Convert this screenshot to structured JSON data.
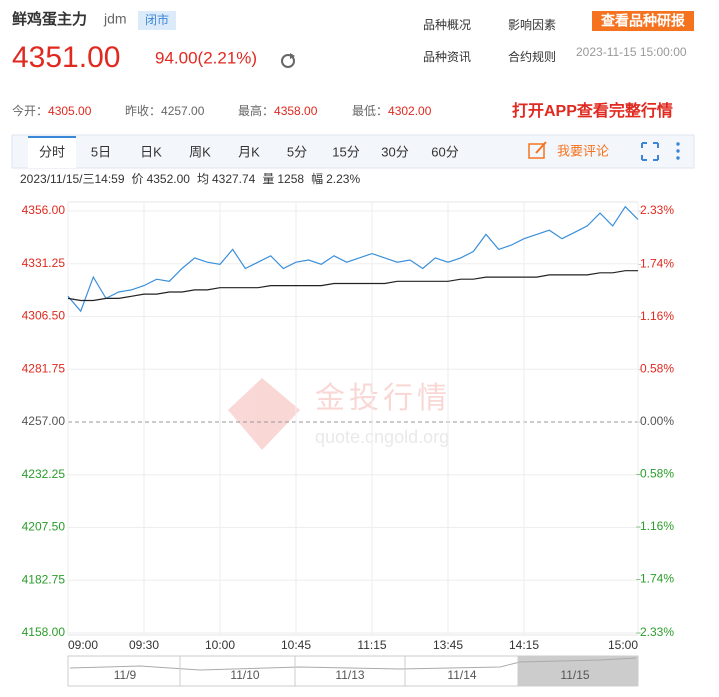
{
  "header": {
    "name": "鲜鸡蛋主力",
    "code": "jdm",
    "status": "闭市",
    "price": "4351.00",
    "change": "94.00(2.21%)",
    "links": [
      "品种概况",
      "影响因素",
      "品种资讯",
      "合约规则"
    ],
    "button": "查看品种研报",
    "datetime": "2023-11-15 15:00:00"
  },
  "stats": [
    {
      "label": "今开：",
      "value": "4305.00"
    },
    {
      "label": "昨收：",
      "value": "4257.00"
    },
    {
      "label": "最高：",
      "value": "4358.00"
    },
    {
      "label": "最低：",
      "value": "4302.00"
    }
  ],
  "promo": "打开APP查看完整行情",
  "tabs": [
    "分时",
    "5日",
    "日K",
    "周K",
    "月K",
    "5分",
    "15分",
    "30分",
    "60分"
  ],
  "comment": "我要评论",
  "info": {
    "time": "2023/11/15/三14:59",
    "price_label": "价",
    "price": "4352.00",
    "avg_label": "均",
    "avg": "4327.74",
    "vol_label": "量",
    "vol": "1258",
    "amp_label": "幅",
    "amp": "2.23%"
  },
  "watermark": {
    "name": "金投行情",
    "url": "quote.cngold.org"
  },
  "navigator": [
    "11/9",
    "11/10",
    "11/13",
    "11/14",
    "11/15"
  ],
  "chart_data": {
    "type": "line",
    "x": [
      0,
      5,
      10,
      15,
      20,
      25,
      30,
      35,
      40,
      45,
      50,
      55,
      60,
      65,
      70,
      75,
      80,
      85,
      90,
      95,
      100,
      105,
      110,
      115,
      120,
      125,
      130,
      135,
      140,
      145,
      150,
      155,
      160,
      165,
      170,
      175,
      180,
      185,
      190,
      195,
      200,
      205,
      210,
      215,
      220,
      225
    ],
    "series": [
      {
        "color": "#3a8fd9",
        "values": [
          4316,
          4309,
          4325,
          4315,
          4318,
          4319,
          4321,
          4324,
          4323,
          4329,
          4334,
          4332,
          4331,
          4338,
          4329,
          4332,
          4335,
          4329,
          4332,
          4333,
          4331,
          4335,
          4332,
          4334,
          4336,
          4334,
          4332,
          4333,
          4329,
          4334,
          4332,
          4334,
          4337,
          4345,
          4338,
          4340,
          4343,
          4345,
          4347,
          4343,
          4346,
          4349,
          4355,
          4349,
          4358,
          4352
        ]
      },
      {
        "color": "#222222",
        "values": [
          4315,
          4314,
          4314,
          4315,
          4315,
          4316,
          4317,
          4317,
          4318,
          4318,
          4319,
          4319,
          4320,
          4320,
          4320,
          4320,
          4321,
          4321,
          4321,
          4321,
          4321,
          4322,
          4322,
          4322,
          4322,
          4322,
          4323,
          4323,
          4323,
          4323,
          4323,
          4324,
          4324,
          4325,
          4325,
          4325,
          4325,
          4325,
          4326,
          4326,
          4326,
          4326,
          4327,
          4327,
          4328,
          4328
        ]
      }
    ],
    "xlim": [
      0,
      225
    ],
    "xticks": [
      {
        "value": 0,
        "label": "09:00"
      },
      {
        "value": 30,
        "label": "09:30"
      },
      {
        "value": 60,
        "label": "10:00"
      },
      {
        "value": 90,
        "label": "10:45"
      },
      {
        "value": 120,
        "label": "11:15"
      },
      {
        "value": 150,
        "label": "13:45"
      },
      {
        "value": 180,
        "label": "14:15"
      },
      {
        "value": 225,
        "label": "15:00"
      }
    ],
    "ylim": [
      4158,
      4356
    ],
    "yticks": [
      {
        "value": 4356,
        "label": "4356.00"
      },
      4331.25,
      {
        "value": 4306.5,
        "label": "4306.50"
      },
      4281.75,
      {
        "value": 4257,
        "label": "4257.00"
      },
      4232.25,
      {
        "value": 4207.5,
        "label": "4207.50"
      },
      4182.75,
      {
        "value": 4158,
        "label": "4158.00"
      }
    ],
    "y2lim": [
      -2.33,
      2.33
    ],
    "y2ticks": [
      {
        "value": 2.33,
        "label": "2.33%"
      },
      {
        "value": 1.74,
        "label": "1.74%"
      },
      {
        "value": 1.16,
        "label": "1.16%"
      },
      {
        "value": 0.58,
        "label": "0.58%"
      },
      {
        "value": 0,
        "label": "0.00%"
      },
      {
        "value": -0.58,
        "label": "-0.58%"
      },
      {
        "value": -1.16,
        "label": "-1.16%"
      },
      {
        "value": -1.74,
        "label": "-1.74%"
      },
      {
        "value": -2.33,
        "label": "-2.33%"
      }
    ],
    "up_color": "#e0291f",
    "down_color": "#2a9d2a",
    "flat_color": "#555555",
    "grid": true
  }
}
